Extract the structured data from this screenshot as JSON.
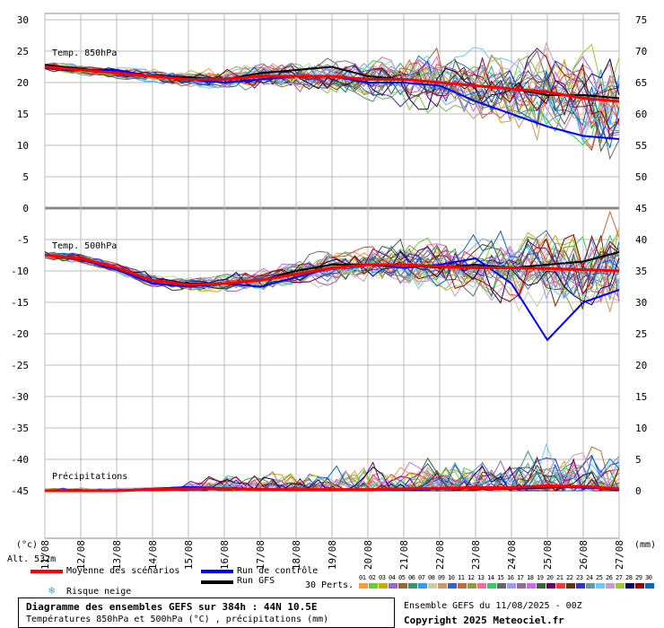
{
  "chart_data": {
    "type": "line",
    "x_dates": [
      "12/08",
      "13/08",
      "14/08",
      "15/08",
      "16/08",
      "17/08",
      "18/08",
      "19/08",
      "20/08",
      "21/08",
      "22/08",
      "23/08",
      "24/08",
      "25/08",
      "26/08",
      "27/08"
    ],
    "x_first_label": "11/08",
    "left_ticks": [
      "30",
      "25",
      "20",
      "15",
      "10",
      "5",
      "0",
      "-5",
      "-10",
      "-15",
      "-20",
      "-25",
      "-30",
      "-35",
      "-40",
      "-45"
    ],
    "right_ticks": [
      "75",
      "70",
      "65",
      "60",
      "55",
      "50",
      "45",
      "40",
      "35",
      "30",
      "25",
      "20",
      "15",
      "10",
      "5",
      "0"
    ],
    "left_unit": "(°c)",
    "right_unit": "(mm)",
    "panels": {
      "t850": {
        "label": "Temp. 850hPa",
        "mean": [
          22.5,
          22,
          21.5,
          21,
          20.5,
          20.5,
          21,
          21,
          21,
          20.5,
          20.5,
          20,
          19.5,
          19,
          18.5,
          17.5,
          17
        ],
        "control": [
          22.5,
          22,
          22,
          21,
          20.5,
          20,
          20.5,
          21,
          21,
          20,
          20,
          19.5,
          17,
          15,
          13,
          11.5,
          11
        ],
        "gfs": [
          22.8,
          22.2,
          21.5,
          21,
          20.8,
          20.5,
          21.5,
          22,
          22.5,
          21,
          20.5,
          20,
          19.5,
          19,
          18,
          18,
          17.5
        ]
      },
      "t500": {
        "label": "Temp. 500hPa",
        "mean": [
          -7.5,
          -8,
          -9.5,
          -11.5,
          -12.2,
          -12,
          -11.5,
          -10.5,
          -9.5,
          -9,
          -9,
          -9.3,
          -9.5,
          -9.5,
          -9.6,
          -9.8,
          -10
        ],
        "control": [
          -7.5,
          -8.2,
          -9.8,
          -12,
          -12.5,
          -12,
          -12.5,
          -11,
          -9.5,
          -9,
          -9.5,
          -9,
          -8,
          -12,
          -21,
          -15,
          -13
        ],
        "gfs": [
          -7.5,
          -8,
          -9.5,
          -11.5,
          -12,
          -12,
          -11.5,
          -10,
          -9,
          -9,
          -9,
          -9.5,
          -9,
          -9.5,
          -9,
          -8.5,
          -7
        ]
      },
      "precip": {
        "label": "Précipitations",
        "mean": [
          0,
          0,
          0,
          0.2,
          0.3,
          0.3,
          0.2,
          0.2,
          0.2,
          0.2,
          0.3,
          0.4,
          0.5,
          0.5,
          0.8,
          0.7,
          0.3
        ],
        "control": [
          0,
          0,
          0,
          0.3,
          0.6,
          0.4,
          0.3,
          0.1,
          0.2,
          0.1,
          0.2,
          0.3,
          0.6,
          0.4,
          0.6,
          0.5,
          0.2
        ],
        "gfs": [
          0,
          0,
          0,
          0.2,
          0.4,
          0.3,
          0.2,
          0.1,
          0.1,
          0.1,
          0.2,
          0.3,
          0.4,
          0.3,
          0.5,
          0.6,
          0.2
        ]
      }
    }
  },
  "altitude_label": "Alt. 532m",
  "legend": {
    "mean": "Moyenne des scénarios",
    "control": "Run de contrôle",
    "gfs": "Run GFS",
    "snow": "Risque neige",
    "perts": "30 Perts."
  },
  "colors": {
    "mean": "#ff0000",
    "control": "#0000ff",
    "gfs": "#000000",
    "grid": "#bbbbbb",
    "snow": "#4aa8e0"
  },
  "pert_numbers": [
    "01",
    "02",
    "03",
    "04",
    "05",
    "06",
    "07",
    "08",
    "09",
    "10",
    "11",
    "12",
    "13",
    "14",
    "15",
    "16",
    "17",
    "18",
    "19",
    "20",
    "21",
    "22",
    "23",
    "24",
    "25",
    "26",
    "27",
    "28",
    "29",
    "30"
  ],
  "pert_colors": [
    "#ff9933",
    "#66cc33",
    "#ccaa00",
    "#9966cc",
    "#996633",
    "#339966",
    "#3399ff",
    "#ccccaa",
    "#cc9966",
    "#3366cc",
    "#cc6633",
    "#999933",
    "#ff6699",
    "#33cc66",
    "#666666",
    "#9999ff",
    "#996699",
    "#cc66ff",
    "#336633",
    "#660066",
    "#ff3333",
    "#663300",
    "#3333cc",
    "#669999",
    "#66ccff",
    "#cc99cc",
    "#99cc33",
    "#000066",
    "#990000",
    "#0066cc"
  ],
  "footer": {
    "title": "Diagramme des ensembles GEFS sur 384h : 44N 10.5E",
    "subtitle": "Températures 850hPa et 500hPa (°C) , précipitations (mm)",
    "run": "Ensemble GEFS du 11/08/2025 - 00Z",
    "copyright": "Copyright 2025 Meteociel.fr"
  }
}
